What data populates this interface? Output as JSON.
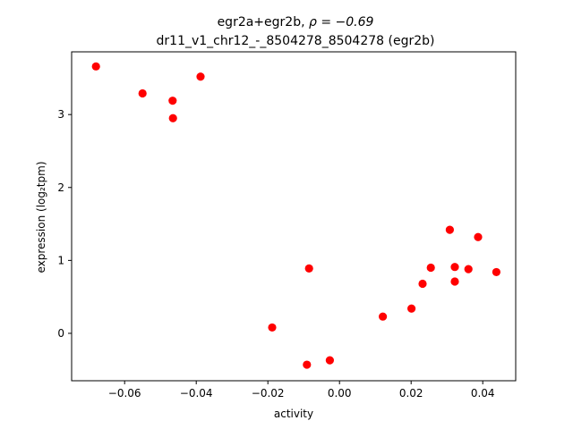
{
  "chart_data": {
    "type": "scatter",
    "title_line1_prefix": "egr2a+egr2b, ",
    "title_line1_rho": "ρ = −0.69",
    "title_line2": "dr11_v1_chr12_-_8504278_8504278 (egr2b)",
    "xlabel": "activity",
    "ylabel": "expression (log₂tpm)",
    "xlim": [
      -0.0748,
      0.0492
    ],
    "ylim": [
      -0.65,
      3.86
    ],
    "xticks": [
      -0.06,
      -0.04,
      -0.02,
      0.0,
      0.02,
      0.04
    ],
    "xtick_labels": [
      "−0.06",
      "−0.04",
      "−0.02",
      "0.00",
      "0.02",
      "0.04"
    ],
    "yticks": [
      0,
      1,
      2,
      3
    ],
    "ytick_labels": [
      "0",
      "1",
      "2",
      "3"
    ],
    "marker_color": "#ff0000",
    "points": [
      {
        "x": -0.068,
        "y": 3.66
      },
      {
        "x": -0.055,
        "y": 3.29
      },
      {
        "x": -0.0466,
        "y": 3.19
      },
      {
        "x": -0.0465,
        "y": 2.95
      },
      {
        "x": -0.0388,
        "y": 3.52
      },
      {
        "x": -0.0188,
        "y": 0.08
      },
      {
        "x": -0.0085,
        "y": 0.89
      },
      {
        "x": -0.0091,
        "y": -0.43
      },
      {
        "x": -0.0027,
        "y": -0.37
      },
      {
        "x": 0.0121,
        "y": 0.23
      },
      {
        "x": 0.0201,
        "y": 0.34
      },
      {
        "x": 0.0232,
        "y": 0.68
      },
      {
        "x": 0.0255,
        "y": 0.9
      },
      {
        "x": 0.0308,
        "y": 1.42
      },
      {
        "x": 0.0322,
        "y": 0.91
      },
      {
        "x": 0.0322,
        "y": 0.71
      },
      {
        "x": 0.036,
        "y": 0.88
      },
      {
        "x": 0.0387,
        "y": 1.32
      },
      {
        "x": 0.0438,
        "y": 0.84
      }
    ]
  }
}
